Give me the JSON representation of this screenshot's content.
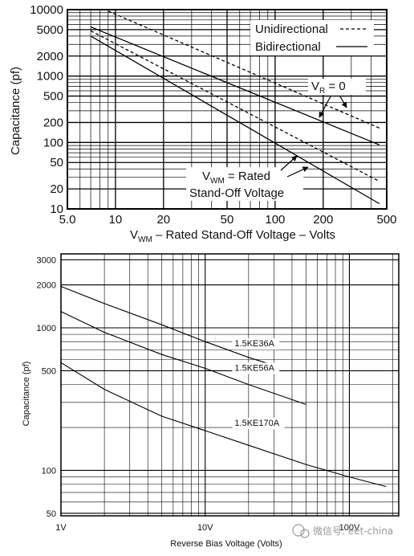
{
  "chart_data": [
    {
      "type": "line",
      "xscale": "log",
      "yscale": "log",
      "xlim": [
        5,
        500
      ],
      "ylim": [
        10,
        10000
      ],
      "xticks": [
        5,
        10,
        20,
        50,
        100,
        200,
        500
      ],
      "xtick_labels": [
        "5.0",
        "10",
        "20",
        "50",
        "100",
        "200",
        "500"
      ],
      "yticks": [
        10,
        20,
        50,
        100,
        200,
        500,
        1000,
        2000,
        5000,
        10000
      ],
      "ytick_labels": [
        "10",
        "20",
        "50",
        "100",
        "200",
        "500",
        "1000",
        "2000",
        "5000",
        "10000"
      ],
      "xlabel_main": "V",
      "xlabel_sub": "WM",
      "xlabel_rest": " – Rated Stand-Off Voltage – Volts",
      "ylabel": "Capacitance (pf)",
      "grid": true,
      "legend": {
        "placement": "top-right",
        "items": [
          {
            "label": "Unidirectional",
            "style": "dashed"
          },
          {
            "label": "Bidirectional",
            "style": "solid"
          }
        ]
      },
      "annotations": {
        "vr_main": "V",
        "vr_sub": "R",
        "vr_rest": " = 0",
        "vwm_main": "V",
        "vwm_sub": "WM",
        "vwm_rest": " = Rated",
        "vwm_line2": "Stand-Off Voltage"
      },
      "series": [
        {
          "style": "dashed",
          "x": [
            9,
            450
          ],
          "y": [
            9500,
            165
          ]
        },
        {
          "style": "solid",
          "x": [
            7,
            450
          ],
          "y": [
            5500,
            92
          ]
        },
        {
          "style": "dashed",
          "x": [
            7,
            450
          ],
          "y": [
            4800,
            26
          ]
        },
        {
          "style": "solid",
          "x": [
            7,
            450
          ],
          "y": [
            4000,
            12
          ]
        }
      ]
    },
    {
      "type": "line",
      "xscale": "log",
      "yscale": "log",
      "xlim": [
        1,
        220
      ],
      "ylim": [
        48,
        3300
      ],
      "xticks": [
        1,
        10,
        100
      ],
      "xtick_labels": [
        "1V",
        "10V",
        "100V"
      ],
      "yticks": [
        50,
        100,
        500,
        1000,
        2000,
        3000
      ],
      "ytick_labels": [
        "50",
        "100",
        "500",
        "1000",
        "2000",
        "3000"
      ],
      "xlabel": "Reverse Bias Voltage (Volts)",
      "ylabel": "Capacitance (pf)",
      "grid": true,
      "series": [
        {
          "name": "1.5KE36A",
          "x": [
            1,
            2,
            5,
            10,
            20,
            30
          ],
          "y": [
            1950,
            1480,
            1050,
            800,
            620,
            545
          ]
        },
        {
          "name": "1.5KE56A",
          "x": [
            1,
            2,
            5,
            10,
            20,
            50
          ],
          "y": [
            1300,
            930,
            650,
            520,
            400,
            290
          ]
        },
        {
          "name": "1.5KE170A",
          "x": [
            1,
            2,
            5,
            10,
            20,
            50,
            100,
            180
          ],
          "y": [
            570,
            370,
            240,
            190,
            150,
            110,
            90,
            77
          ]
        }
      ]
    }
  ],
  "watermark": "微信号: eet-china"
}
